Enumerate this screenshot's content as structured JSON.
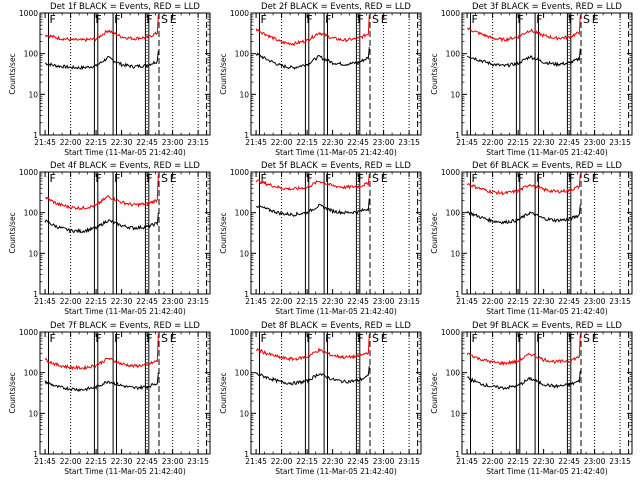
{
  "figure": {
    "xlabel": "Start Time (11-Mar-05 21:42:40)",
    "ylabel": "Counts/sec",
    "x_tick_labels": [
      "21:45",
      "22:00",
      "22:15",
      "22:30",
      "22:45",
      "23:00",
      "23:15"
    ],
    "y_tick_labels": [
      "1",
      "10",
      "100",
      "1000"
    ],
    "series_colors": {
      "events": "#000000",
      "lld": "#ee0000"
    },
    "marker_labels": {
      "flare": "F",
      "saa_start": "S",
      "saa_end": "E"
    }
  },
  "chart_data": [
    {
      "type": "line",
      "title": "Det 1f BLACK = Events, RED = LLD",
      "xlabel": "Start Time (11-Mar-05 21:42:40)",
      "ylabel": "Counts/sec",
      "x_ticks": [
        "21:45",
        "22:00",
        "22:15",
        "22:30",
        "22:45",
        "23:00",
        "23:15"
      ],
      "y_scale": "log",
      "ylim": [
        1,
        1000
      ],
      "x": [
        "21:45",
        "21:52",
        "22:00",
        "22:07",
        "22:15",
        "22:22",
        "22:30",
        "22:37",
        "22:45",
        "22:51"
      ],
      "series": [
        {
          "values": [
            58,
            50,
            46,
            45,
            50,
            80,
            54,
            48,
            52,
            65
          ]
        },
        {
          "values": [
            290,
            245,
            220,
            215,
            230,
            375,
            260,
            235,
            255,
            320
          ]
        }
      ]
    },
    {
      "type": "line",
      "title": "Det 2f BLACK = Events, RED = LLD",
      "xlabel": "Start Time (11-Mar-05 21:42:40)",
      "ylabel": "Counts/sec",
      "x_ticks": [
        "21:45",
        "22:00",
        "22:15",
        "22:30",
        "22:45",
        "23:00",
        "23:15"
      ],
      "y_scale": "log",
      "ylim": [
        1,
        1000
      ],
      "x": [
        "21:45",
        "21:52",
        "22:00",
        "22:07",
        "22:15",
        "22:22",
        "22:30",
        "22:37",
        "22:45",
        "22:51"
      ],
      "series": [
        {
          "values": [
            100,
            70,
            50,
            45,
            55,
            85,
            60,
            55,
            60,
            80
          ]
        },
        {
          "values": [
            400,
            280,
            190,
            175,
            210,
            330,
            240,
            215,
            235,
            310
          ]
        }
      ]
    },
    {
      "type": "line",
      "title": "Det 3f BLACK = Events, RED = LLD",
      "xlabel": "Start Time (11-Mar-05 21:42:40)",
      "ylabel": "Counts/sec",
      "x_ticks": [
        "21:45",
        "22:00",
        "22:15",
        "22:30",
        "22:45",
        "23:00",
        "23:15"
      ],
      "y_scale": "log",
      "ylim": [
        1,
        1000
      ],
      "x": [
        "21:45",
        "21:52",
        "22:00",
        "22:07",
        "22:15",
        "22:22",
        "22:30",
        "22:37",
        "22:45",
        "22:51"
      ],
      "series": [
        {
          "values": [
            90,
            70,
            55,
            50,
            58,
            85,
            62,
            55,
            58,
            75
          ]
        },
        {
          "values": [
            420,
            320,
            240,
            220,
            260,
            380,
            280,
            240,
            255,
            330
          ]
        }
      ]
    },
    {
      "type": "line",
      "title": "Det 4f BLACK = Events, RED = LLD",
      "xlabel": "Start Time (11-Mar-05 21:42:40)",
      "ylabel": "Counts/sec",
      "x_ticks": [
        "21:45",
        "22:00",
        "22:15",
        "22:30",
        "22:45",
        "23:00",
        "23:15"
      ],
      "y_scale": "log",
      "ylim": [
        1,
        1000
      ],
      "x": [
        "21:45",
        "21:52",
        "22:00",
        "22:07",
        "22:15",
        "22:22",
        "22:30",
        "22:37",
        "22:45",
        "22:51"
      ],
      "series": [
        {
          "values": [
            62,
            45,
            36,
            35,
            42,
            65,
            48,
            42,
            45,
            55
          ]
        },
        {
          "values": [
            240,
            165,
            135,
            130,
            150,
            250,
            180,
            155,
            165,
            205
          ]
        }
      ]
    },
    {
      "type": "line",
      "title": "Det 5f BLACK = Events, RED = LLD",
      "xlabel": "Start Time (11-Mar-05 21:42:40)",
      "ylabel": "Counts/sec",
      "x_ticks": [
        "21:45",
        "22:00",
        "22:15",
        "22:30",
        "22:45",
        "23:00",
        "23:15"
      ],
      "y_scale": "log",
      "ylim": [
        1,
        1000
      ],
      "x": [
        "21:45",
        "21:52",
        "22:00",
        "22:07",
        "22:15",
        "22:22",
        "22:30",
        "22:37",
        "22:45",
        "22:51"
      ],
      "series": [
        {
          "values": [
            150,
            120,
            95,
            90,
            100,
            150,
            110,
            100,
            105,
            125
          ]
        },
        {
          "values": [
            620,
            500,
            400,
            380,
            420,
            600,
            460,
            420,
            440,
            520
          ]
        }
      ]
    },
    {
      "type": "line",
      "title": "Det 6f BLACK = Events, RED = LLD",
      "xlabel": "Start Time (11-Mar-05 21:42:40)",
      "ylabel": "Counts/sec",
      "x_ticks": [
        "21:45",
        "22:00",
        "22:15",
        "22:30",
        "22:45",
        "23:00",
        "23:15"
      ],
      "y_scale": "log",
      "ylim": [
        1,
        1000
      ],
      "x": [
        "21:45",
        "21:52",
        "22:00",
        "22:07",
        "22:15",
        "22:22",
        "22:30",
        "22:37",
        "22:45",
        "22:51"
      ],
      "series": [
        {
          "values": [
            105,
            80,
            62,
            58,
            66,
            100,
            72,
            65,
            68,
            88
          ]
        },
        {
          "values": [
            520,
            400,
            320,
            300,
            340,
            500,
            370,
            330,
            350,
            440
          ]
        }
      ]
    },
    {
      "type": "line",
      "title": "Det 7f BLACK = Events, RED = LLD",
      "xlabel": "Start Time (11-Mar-05 21:42:40)",
      "ylabel": "Counts/sec",
      "x_ticks": [
        "21:45",
        "22:00",
        "22:15",
        "22:30",
        "22:45",
        "23:00",
        "23:15"
      ],
      "y_scale": "log",
      "ylim": [
        1,
        1000
      ],
      "x": [
        "21:45",
        "21:52",
        "22:00",
        "22:07",
        "22:15",
        "22:22",
        "22:30",
        "22:37",
        "22:45",
        "22:51"
      ],
      "series": [
        {
          "values": [
            60,
            45,
            40,
            38,
            44,
            62,
            48,
            42,
            45,
            56
          ]
        },
        {
          "values": [
            210,
            155,
            135,
            130,
            150,
            225,
            165,
            145,
            155,
            195
          ]
        }
      ]
    },
    {
      "type": "line",
      "title": "Det 8f BLACK = Events, RED = LLD",
      "xlabel": "Start Time (11-Mar-05 21:42:40)",
      "ylabel": "Counts/sec",
      "x_ticks": [
        "21:45",
        "22:00",
        "22:15",
        "22:30",
        "22:45",
        "23:00",
        "23:15"
      ],
      "y_scale": "log",
      "ylim": [
        1,
        1000
      ],
      "x": [
        "21:45",
        "21:52",
        "22:00",
        "22:07",
        "22:15",
        "22:22",
        "22:30",
        "22:37",
        "22:45",
        "22:51"
      ],
      "series": [
        {
          "values": [
            95,
            75,
            58,
            55,
            62,
            95,
            68,
            60,
            64,
            82
          ]
        },
        {
          "values": [
            380,
            290,
            230,
            215,
            245,
            360,
            265,
            240,
            250,
            315
          ]
        }
      ]
    },
    {
      "type": "line",
      "title": "Det 9f BLACK = Events, RED = LLD",
      "xlabel": "Start Time (11-Mar-05 21:42:40)",
      "ylabel": "Counts/sec",
      "x_ticks": [
        "21:45",
        "22:00",
        "22:15",
        "22:30",
        "22:45",
        "23:00",
        "23:15"
      ],
      "y_scale": "log",
      "ylim": [
        1,
        1000
      ],
      "x": [
        "21:45",
        "21:52",
        "22:00",
        "22:07",
        "22:15",
        "22:22",
        "22:30",
        "22:37",
        "22:45",
        "22:51"
      ],
      "series": [
        {
          "values": [
            75,
            55,
            45,
            42,
            48,
            72,
            52,
            46,
            50,
            62
          ]
        },
        {
          "values": [
            300,
            220,
            180,
            170,
            190,
            290,
            210,
            185,
            195,
            245
          ]
        }
      ]
    }
  ]
}
